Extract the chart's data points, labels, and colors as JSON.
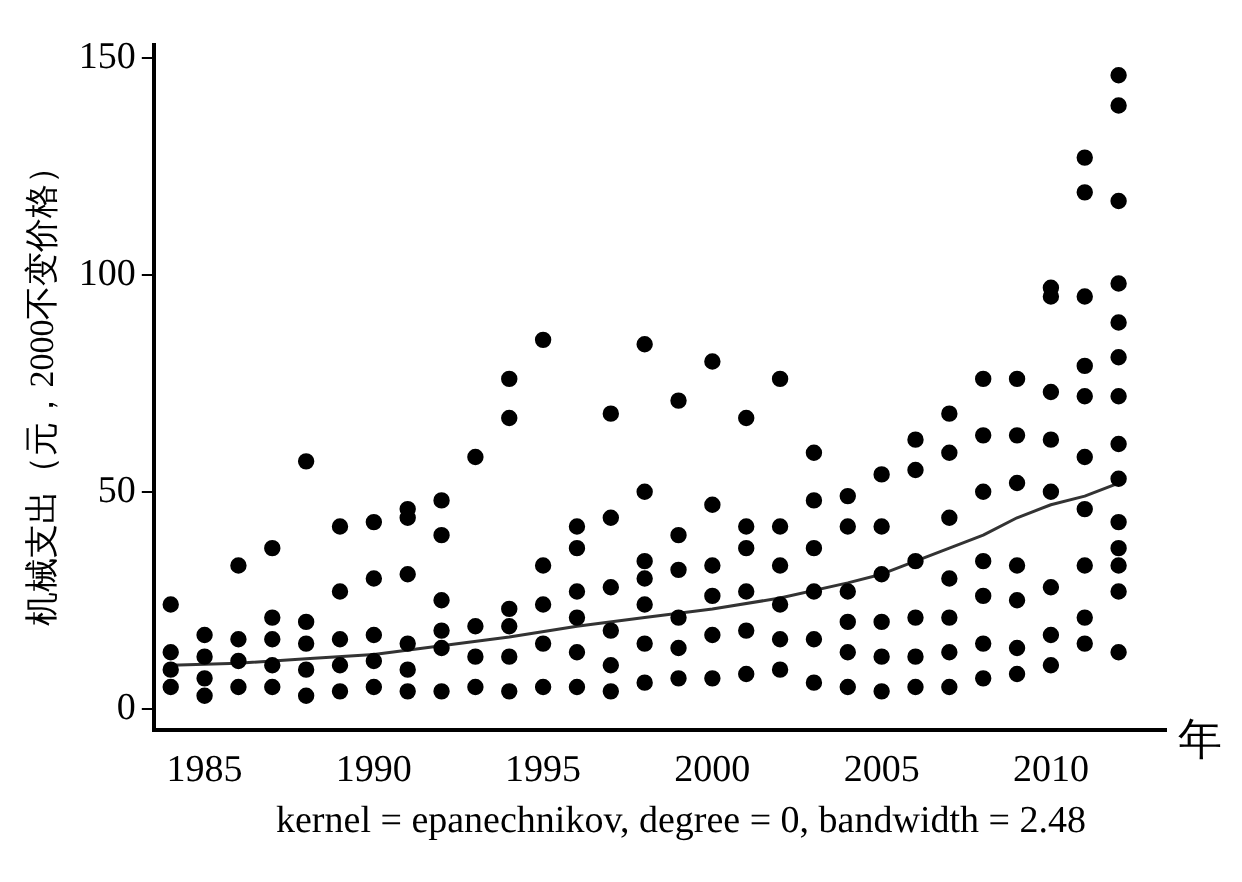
{
  "chart_data": {
    "type": "scatter",
    "ylabel": "机械支出（元，2000不变价格）",
    "xlabel": "年",
    "annotations": [
      "kernel = epanechnikov, degree = 0, bandwidth = 2.48"
    ],
    "xlim": [
      1983.5,
      2013.4
    ],
    "xticks": [
      1985,
      1990,
      1995,
      2000,
      2005,
      2010
    ],
    "ylim": [
      -5,
      153
    ],
    "yticks": [
      0,
      50,
      100,
      150
    ],
    "grid": false,
    "legend": false,
    "series": [
      {
        "marker": "circle",
        "color": "#000000",
        "x": [
          1984,
          1984,
          1984,
          1984,
          1985,
          1985,
          1985,
          1985,
          1986,
          1986,
          1986,
          1986,
          1987,
          1987,
          1987,
          1987,
          1987,
          1988,
          1988,
          1988,
          1988,
          1988,
          1989,
          1989,
          1989,
          1989,
          1989,
          1990,
          1990,
          1990,
          1990,
          1990,
          1991,
          1991,
          1991,
          1991,
          1991,
          1991,
          1992,
          1992,
          1992,
          1992,
          1992,
          1992,
          1993,
          1993,
          1993,
          1993,
          1994,
          1994,
          1994,
          1994,
          1994,
          1994,
          1995,
          1995,
          1995,
          1995,
          1995,
          1996,
          1996,
          1996,
          1996,
          1996,
          1996,
          1997,
          1997,
          1997,
          1997,
          1997,
          1997,
          1998,
          1998,
          1998,
          1998,
          1998,
          1998,
          1998,
          1999,
          1999,
          1999,
          1999,
          1999,
          1999,
          2000,
          2000,
          2000,
          2000,
          2000,
          2000,
          2001,
          2001,
          2001,
          2001,
          2001,
          2001,
          2002,
          2002,
          2002,
          2002,
          2002,
          2002,
          2003,
          2003,
          2003,
          2003,
          2003,
          2003,
          2004,
          2004,
          2004,
          2004,
          2004,
          2004,
          2005,
          2005,
          2005,
          2005,
          2005,
          2005,
          2006,
          2006,
          2006,
          2006,
          2006,
          2006,
          2007,
          2007,
          2007,
          2007,
          2007,
          2007,
          2007,
          2008,
          2008,
          2008,
          2008,
          2008,
          2008,
          2008,
          2009,
          2009,
          2009,
          2009,
          2009,
          2009,
          2009,
          2010,
          2010,
          2010,
          2010,
          2010,
          2010,
          2010,
          2010,
          2011,
          2011,
          2011,
          2011,
          2011,
          2011,
          2011,
          2011,
          2011,
          2011,
          2012,
          2012,
          2012,
          2012,
          2012,
          2012,
          2012,
          2012,
          2012,
          2012,
          2012,
          2012,
          2012,
          2012
        ],
        "values": [
          24,
          13,
          9,
          5,
          17,
          12,
          7,
          3,
          33,
          16,
          11,
          5,
          37,
          21,
          16,
          10,
          5,
          57,
          20,
          15,
          9,
          3,
          42,
          27,
          16,
          10,
          4,
          43,
          30,
          17,
          11,
          5,
          46,
          44,
          31,
          15,
          9,
          4,
          48,
          40,
          25,
          18,
          14,
          4,
          58,
          19,
          12,
          5,
          76,
          67,
          23,
          19,
          12,
          4,
          85,
          33,
          24,
          15,
          5,
          42,
          37,
          27,
          21,
          13,
          5,
          68,
          44,
          28,
          18,
          10,
          4,
          84,
          50,
          34,
          30,
          24,
          15,
          6,
          71,
          40,
          32,
          21,
          14,
          7,
          80,
          47,
          33,
          26,
          17,
          7,
          67,
          42,
          37,
          27,
          18,
          8,
          76,
          42,
          33,
          24,
          16,
          9,
          59,
          48,
          37,
          27,
          16,
          6,
          49,
          42,
          27,
          20,
          13,
          5,
          54,
          42,
          31,
          20,
          12,
          4,
          62,
          55,
          34,
          21,
          12,
          5,
          68,
          59,
          44,
          30,
          21,
          13,
          5,
          76,
          63,
          50,
          34,
          26,
          15,
          7,
          76,
          63,
          52,
          33,
          25,
          14,
          8,
          97,
          95,
          73,
          62,
          50,
          28,
          17,
          10,
          127,
          119,
          95,
          79,
          72,
          58,
          46,
          33,
          21,
          15,
          146,
          139,
          117,
          98,
          89,
          81,
          72,
          61,
          53,
          43,
          37,
          33,
          27,
          13
        ]
      },
      {
        "type": "line",
        "marker": "none",
        "line_style": "solid",
        "color": "#333333",
        "x": [
          1984,
          1986,
          1988,
          1990,
          1992,
          1994,
          1996,
          1998,
          2000,
          2002,
          2004,
          2005,
          2006,
          2007,
          2008,
          2009,
          2010,
          2011,
          2012
        ],
        "values": [
          10,
          10.5,
          11.5,
          12.5,
          14.5,
          16.5,
          19,
          21,
          23,
          25.5,
          29,
          31,
          34,
          37,
          40,
          44,
          47,
          49,
          52
        ]
      }
    ]
  }
}
